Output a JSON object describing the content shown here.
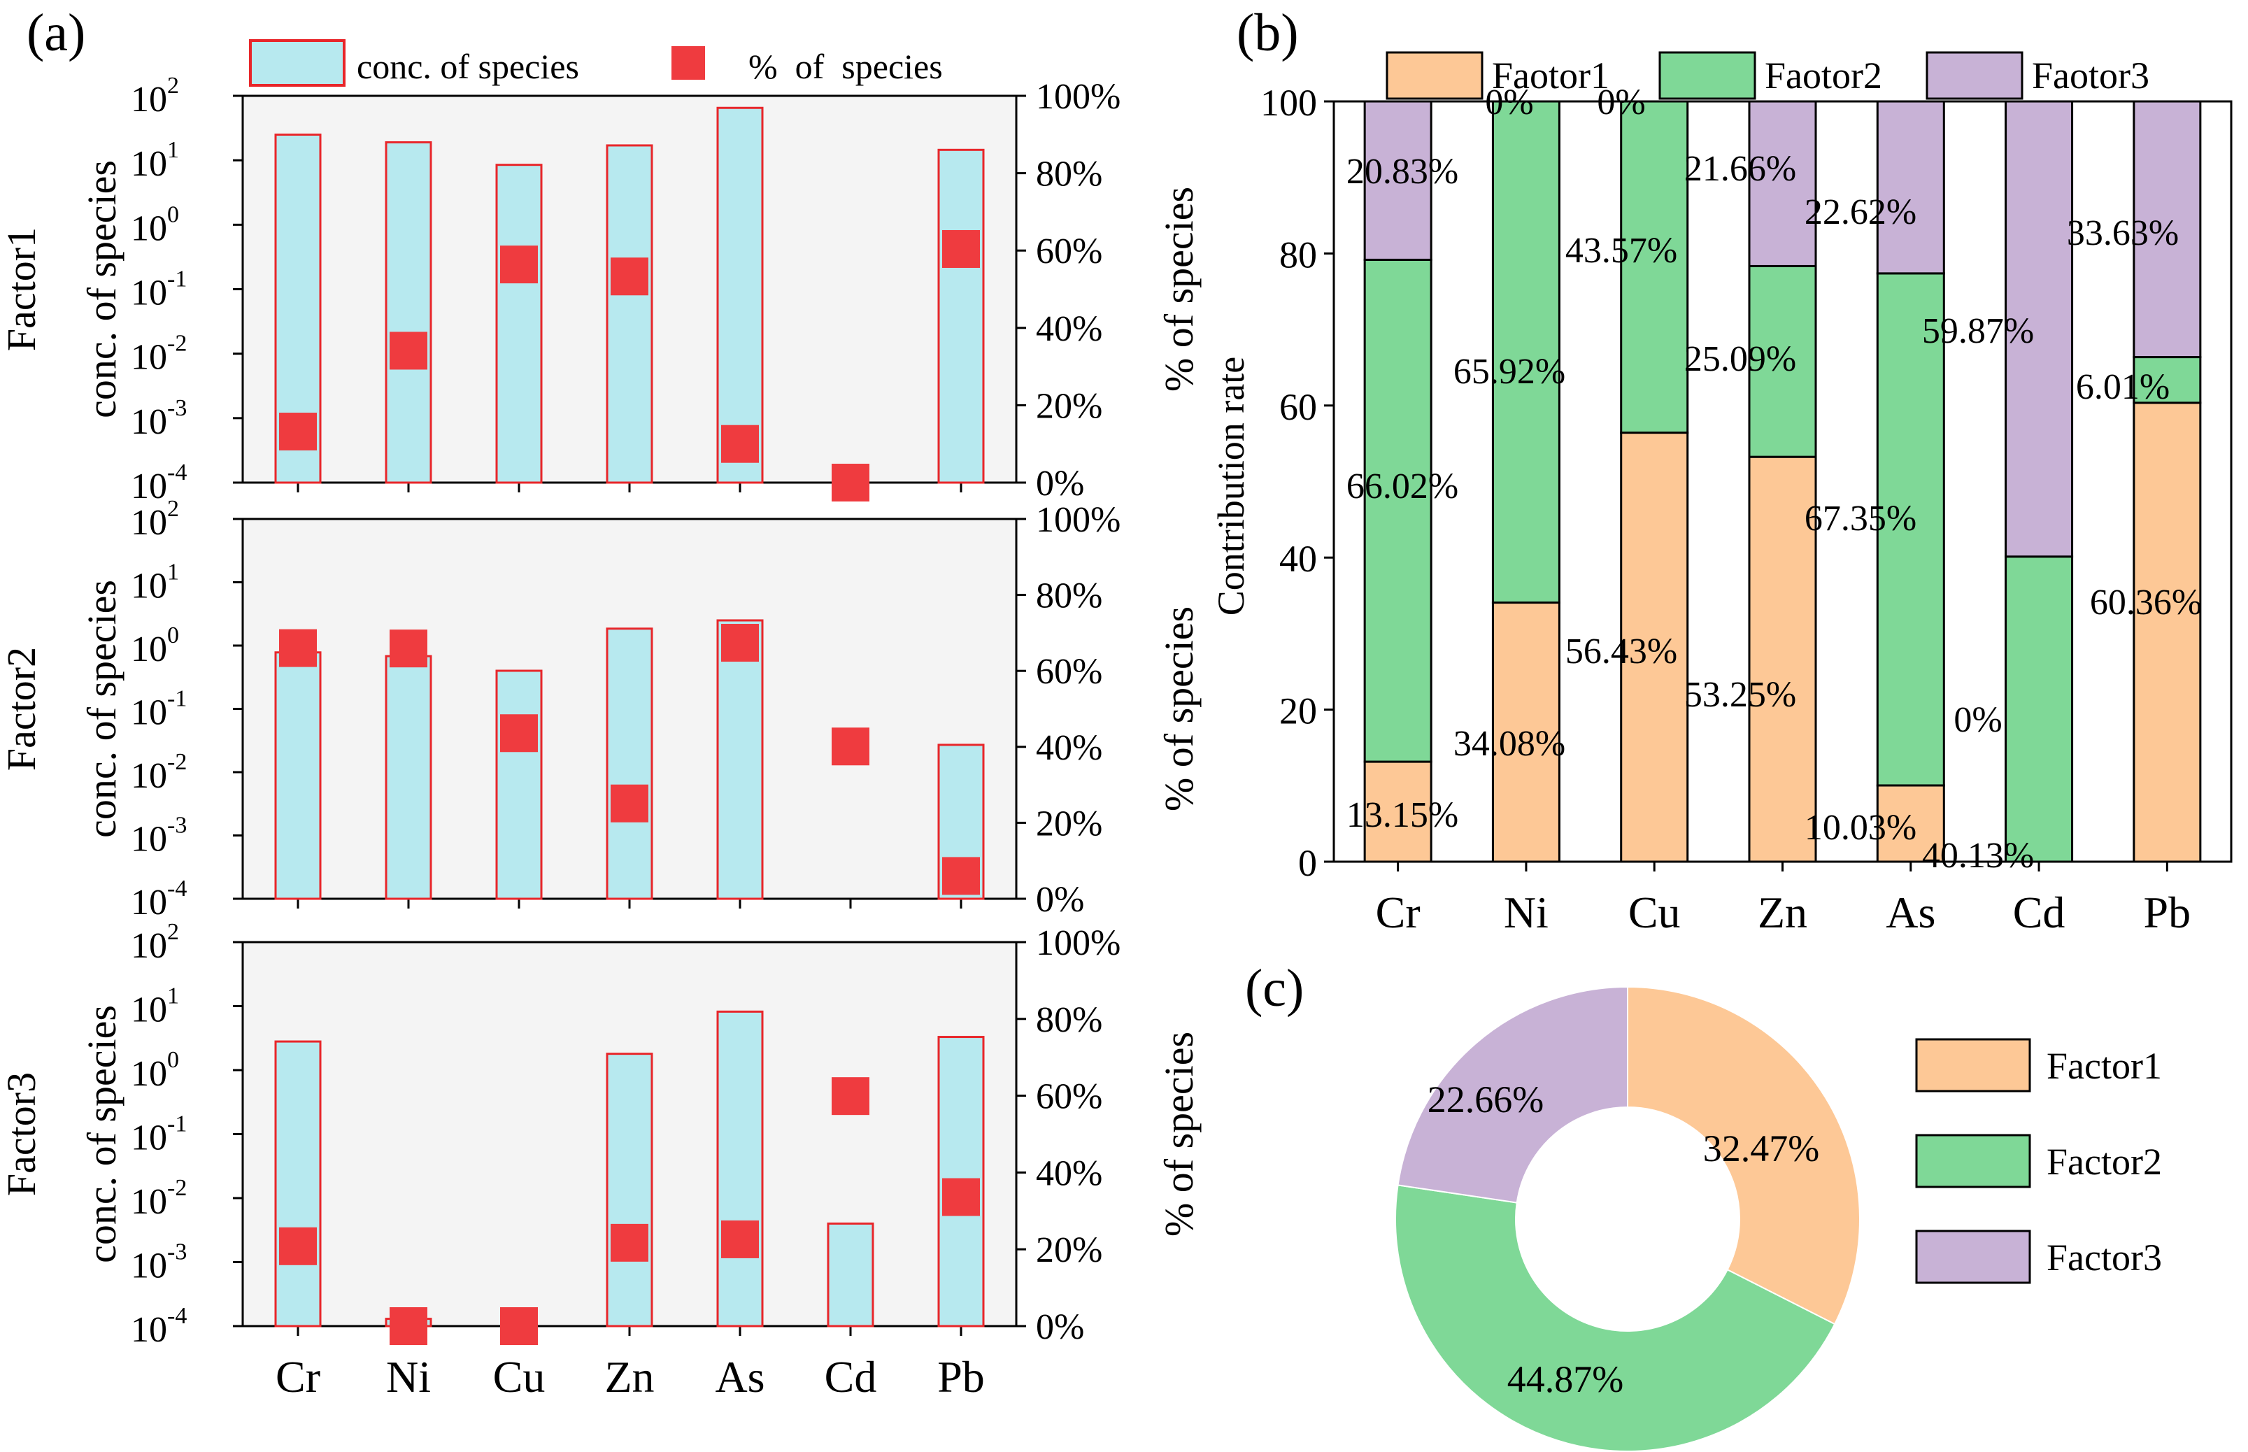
{
  "colors": {
    "conc_fill": "#b7e9ef",
    "conc_edge": "#e8262a",
    "pct_marker": "#ef3b3f",
    "panel_bg": "#f4f4f4",
    "factor1": "#fdc896",
    "factor2": "#7fd897",
    "factor3": "#c8b2d6"
  },
  "labels": {
    "panel_a": "(a)",
    "panel_b": "(b)",
    "panel_c": "(c)"
  },
  "chart_data": [
    {
      "id": "a",
      "type": "bar",
      "subtype": "log bar with percent markers",
      "categories": [
        "Cr",
        "Ni",
        "Cu",
        "Zn",
        "As",
        "Cd",
        "Pb"
      ],
      "legend": [
        "conc. of species",
        "% of species"
      ],
      "left_axis": {
        "label": "conc. of species",
        "scale": "log",
        "range": [
          0.0001,
          100
        ],
        "tick_values": [
          0.0001,
          0.001,
          0.01,
          0.1,
          1,
          10,
          100
        ],
        "tick_bases": [
          "10",
          "10",
          "10",
          "10",
          "10",
          "10",
          "10"
        ],
        "tick_exponents": [
          "-4",
          "-3",
          "-2",
          "-1",
          "0",
          "1",
          "2"
        ]
      },
      "right_axis": {
        "label": "% of species",
        "range": [
          0,
          100
        ],
        "tick_values": [
          0,
          20,
          40,
          60,
          80,
          100
        ],
        "tick_labels": [
          "0%",
          "20%",
          "40%",
          "60%",
          "80%",
          "100%"
        ]
      },
      "panels": [
        {
          "name": "Factor1",
          "conc": [
            25,
            19,
            8.5,
            17,
            65,
            null,
            14.5
          ],
          "pct": [
            13.2,
            34.1,
            56.4,
            53.3,
            10.0,
            0,
            60.4
          ]
        },
        {
          "name": "Factor2",
          "conc": [
            0.78,
            0.68,
            0.4,
            1.85,
            2.5,
            null,
            0.027
          ],
          "pct": [
            66.0,
            65.9,
            43.6,
            25.1,
            67.4,
            40.1,
            6.0
          ]
        },
        {
          "name": "Factor3",
          "conc": [
            2.8,
            0.00013,
            null,
            1.8,
            8.2,
            0.004,
            3.3
          ],
          "pct": [
            20.8,
            0,
            0,
            21.7,
            22.6,
            59.9,
            33.6
          ]
        }
      ]
    },
    {
      "id": "b",
      "type": "bar",
      "subtype": "stacked",
      "categories": [
        "Cr",
        "Ni",
        "Cu",
        "Zn",
        "As",
        "Cd",
        "Pb"
      ],
      "ylabel": "Contribution rate",
      "ylim": [
        0,
        100
      ],
      "yticks": [
        0,
        20,
        40,
        60,
        80,
        100
      ],
      "series": [
        {
          "name": "Faotor1",
          "values": [
            13.15,
            34.08,
            56.43,
            53.25,
            10.03,
            0,
            60.36
          ],
          "labels": [
            "13.15%",
            "34.08%",
            "56.43%",
            "53.25%",
            "10.03%",
            "0%",
            "60.36%"
          ]
        },
        {
          "name": "Faotor2",
          "values": [
            66.02,
            65.92,
            43.57,
            25.09,
            67.35,
            40.13,
            6.01
          ],
          "labels": [
            "66.02%",
            "65.92%",
            "43.57%",
            "25.09%",
            "67.35%",
            "40.13%",
            "6.01%"
          ]
        },
        {
          "name": "Faotor3",
          "values": [
            20.83,
            0,
            0,
            21.66,
            22.62,
            59.87,
            33.63
          ],
          "labels": [
            "20.83%",
            "0%",
            "0%",
            "21.66%",
            "22.62%",
            "59.87%",
            "33.63%"
          ]
        }
      ]
    },
    {
      "id": "c",
      "type": "pie",
      "subtype": "donut",
      "slices": [
        {
          "name": "Factor1",
          "value": 32.47,
          "label": "32.47%"
        },
        {
          "name": "Factor2",
          "value": 44.87,
          "label": "44.87%"
        },
        {
          "name": "Factor3",
          "value": 22.66,
          "label": "22.66%"
        }
      ]
    }
  ]
}
